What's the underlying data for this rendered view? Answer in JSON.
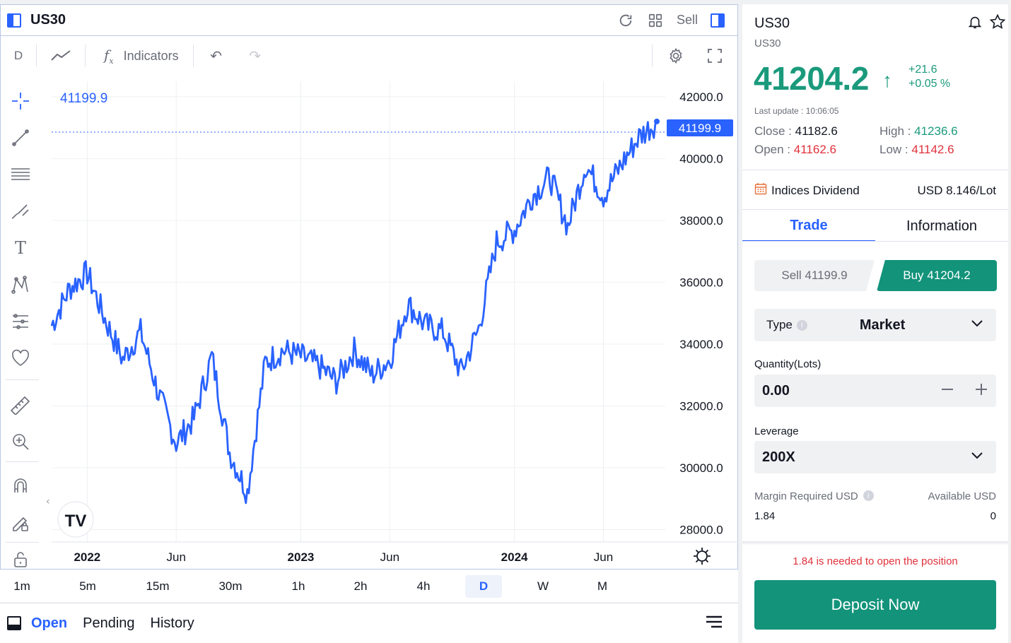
{
  "chart": {
    "symbol": "US30",
    "sell_label": "Sell",
    "interval_label": "D",
    "indicators_label": "Indicators",
    "current_price_label": "41199.9",
    "price_tag": "41199.9",
    "y_ticks": [
      "42000.0",
      "40000.0",
      "38000.0",
      "36000.0",
      "34000.0",
      "32000.0",
      "30000.0",
      "28000.0"
    ],
    "x_ticks": [
      {
        "label": "2022",
        "bold": true
      },
      {
        "label": "Jun",
        "bold": false
      },
      {
        "label": "2023",
        "bold": true
      },
      {
        "label": "Jun",
        "bold": false
      },
      {
        "label": "2024",
        "bold": true
      },
      {
        "label": "Jun",
        "bold": false
      }
    ],
    "line_color": "#2962ff"
  },
  "chart_data": {
    "type": "line",
    "x": [
      "2021-11",
      "2021-12",
      "2022-01",
      "2022-02",
      "2022-03",
      "2022-04",
      "2022-05",
      "2022-06",
      "2022-07",
      "2022-08",
      "2022-09",
      "2022-10",
      "2022-11",
      "2022-12",
      "2023-01",
      "2023-02",
      "2023-03",
      "2023-04",
      "2023-05",
      "2023-06",
      "2023-07",
      "2023-08",
      "2023-09",
      "2023-10",
      "2023-11",
      "2023-12",
      "2024-01",
      "2024-02",
      "2024-03",
      "2024-04",
      "2024-05",
      "2024-06",
      "2024-07",
      "2024-08",
      "2024-09"
    ],
    "series": [
      {
        "values": [
          34600,
          35800,
          36300,
          34800,
          33500,
          34400,
          32400,
          30800,
          31600,
          33600,
          30500,
          29200,
          33400,
          33800,
          33600,
          33300,
          32800,
          33800,
          33000,
          33500,
          35300,
          34600,
          34400,
          33100,
          34500,
          37300,
          37700,
          38800,
          39400,
          37800,
          39800,
          38800,
          39800,
          40700,
          41200
        ]
      }
    ],
    "ylim": [
      27600,
      42500
    ],
    "grid": true
  },
  "timeframes": [
    {
      "label": "1m",
      "active": false
    },
    {
      "label": "5m",
      "active": false
    },
    {
      "label": "15m",
      "active": false
    },
    {
      "label": "30m",
      "active": false
    },
    {
      "label": "1h",
      "active": false
    },
    {
      "label": "2h",
      "active": false
    },
    {
      "label": "4h",
      "active": false
    },
    {
      "label": "D",
      "active": true
    },
    {
      "label": "W",
      "active": false
    },
    {
      "label": "M",
      "active": false
    }
  ],
  "positions": {
    "tabs": [
      "Open",
      "Pending",
      "History"
    ]
  },
  "instrument": {
    "title": "US30",
    "subtitle": "US30",
    "price": "41204.2",
    "change_abs": "+21.6",
    "change_pct": "+0.05 %",
    "last_update": "Last update : 10:06:05",
    "close_label": "Close : ",
    "close_value": "41182.6",
    "high_label": "High : ",
    "high_value": "41236.6",
    "open_label": "Open : ",
    "open_value": "41162.6",
    "low_label": "Low : ",
    "low_value": "41142.6"
  },
  "dividend": {
    "label": "Indices Dividend",
    "value": "USD 8.146/Lot"
  },
  "trade_tabs": [
    "Trade",
    "Information"
  ],
  "order": {
    "sell_label": "Sell 41199.9",
    "buy_label": "Buy 41204.2",
    "type_label": "Type",
    "type_value": "Market",
    "quantity_label": "Quantity(Lots)",
    "quantity_value": "0.00",
    "leverage_label": "Leverage",
    "leverage_value": "200X",
    "margin_label": "Margin Required USD",
    "margin_value": "1.84",
    "available_label": "Available USD",
    "available_value": "0",
    "warning": "1.84 is needed to open the position",
    "deposit_label": "Deposit Now"
  },
  "colors": {
    "accent": "#2962ff",
    "green": "#1a9a7c",
    "red": "#e0313b",
    "buy_bg": "#12937a"
  }
}
